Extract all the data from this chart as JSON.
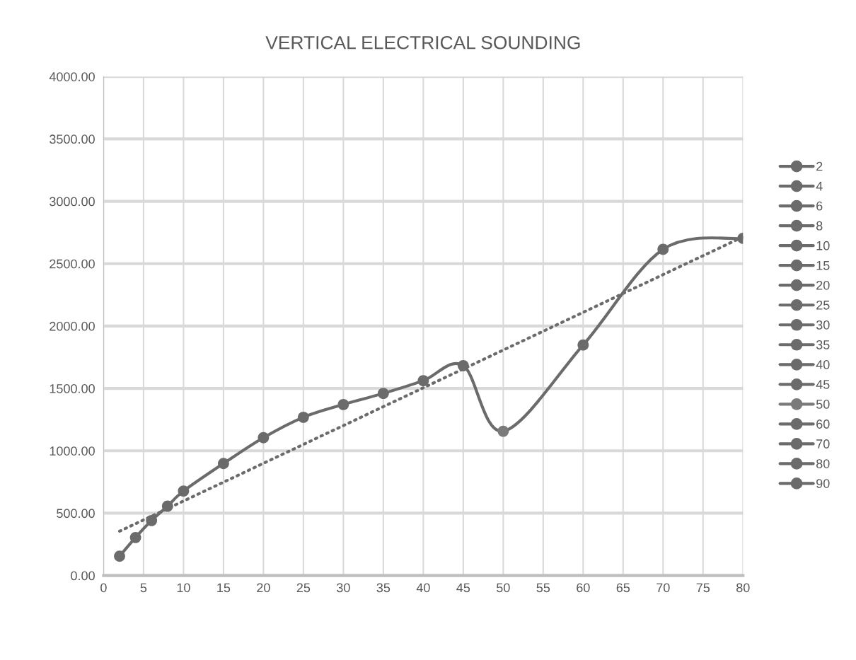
{
  "chart_data": {
    "type": "scatter",
    "title": "VERTICAL ELECTRICAL SOUNDING",
    "xlim": [
      0,
      80
    ],
    "xticks": [
      0,
      5,
      10,
      15,
      20,
      25,
      30,
      35,
      40,
      45,
      50,
      55,
      60,
      65,
      70,
      75,
      80
    ],
    "ylim": [
      0,
      4000
    ],
    "yticks": [
      {
        "value": 0,
        "label": "0.00"
      },
      {
        "value": 500,
        "label": "500.00"
      },
      {
        "value": 1000,
        "label": "1000.00"
      },
      {
        "value": 1500,
        "label": "1500.00"
      },
      {
        "value": 2000,
        "label": "2000.00"
      },
      {
        "value": 2500,
        "label": "2500.00"
      },
      {
        "value": 3000,
        "label": "3000.00"
      },
      {
        "value": 3500,
        "label": "3500.00"
      },
      {
        "value": 4000,
        "label": "4000.00"
      }
    ],
    "grid": true,
    "legend": "right",
    "marker": "circle",
    "series": [
      {
        "type": "line",
        "color": "#6b6b6b",
        "marker": "none",
        "line_style": "solid",
        "x": [
          2,
          4,
          6,
          8,
          10,
          15,
          20,
          25,
          30,
          35,
          40,
          45,
          50,
          60,
          70,
          80
        ],
        "values": [
          155,
          305,
          441,
          556,
          677,
          898,
          1105,
          1269,
          1371,
          1460,
          1562,
          1683,
          1157,
          1848,
          2615,
          2703
        ]
      },
      {
        "type": "line",
        "color": "#6b6b6b",
        "marker": "none",
        "line_style": "dotted",
        "x": [
          2,
          80
        ],
        "values": [
          355,
          2715
        ]
      },
      {
        "name": "2",
        "color": "#6b6b6b",
        "x": [
          2
        ],
        "values": [
          155
        ]
      },
      {
        "name": "4",
        "color": "#6b6b6b",
        "x": [
          4
        ],
        "values": [
          305
        ]
      },
      {
        "name": "6",
        "color": "#6b6b6b",
        "x": [
          6
        ],
        "values": [
          441
        ]
      },
      {
        "name": "8",
        "color": "#6b6b6b",
        "x": [
          8
        ],
        "values": [
          556
        ]
      },
      {
        "name": "10",
        "color": "#6b6b6b",
        "x": [
          10
        ],
        "values": [
          677
        ]
      },
      {
        "name": "15",
        "color": "#6b6b6b",
        "x": [
          15
        ],
        "values": [
          898
        ]
      },
      {
        "name": "20",
        "color": "#6b6b6b",
        "x": [
          20
        ],
        "values": [
          1105
        ]
      },
      {
        "name": "25",
        "color": "#6b6b6b",
        "x": [
          25
        ],
        "values": [
          1269
        ]
      },
      {
        "name": "30",
        "color": "#6b6b6b",
        "x": [
          30
        ],
        "values": [
          1371
        ]
      },
      {
        "name": "35",
        "color": "#6b6b6b",
        "x": [
          35
        ],
        "values": [
          1460
        ]
      },
      {
        "name": "40",
        "color": "#6b6b6b",
        "x": [
          40
        ],
        "values": [
          1562
        ]
      },
      {
        "name": "45",
        "color": "#6b6b6b",
        "x": [
          45
        ],
        "values": [
          1683
        ]
      },
      {
        "name": "50",
        "color": "#7a7a7a",
        "x": [
          50
        ],
        "values": [
          1157
        ]
      },
      {
        "name": "60",
        "color": "#6b6b6b",
        "x": [
          60
        ],
        "values": [
          1848
        ]
      },
      {
        "name": "70",
        "color": "#6b6b6b",
        "x": [
          70
        ],
        "values": [
          2615
        ]
      },
      {
        "name": "80",
        "color": "#6b6b6b",
        "x": [
          80
        ],
        "values": [
          2703
        ]
      },
      {
        "name": "90",
        "color": "#6b6b6b",
        "x": [
          null
        ],
        "values": [
          null
        ]
      }
    ]
  }
}
